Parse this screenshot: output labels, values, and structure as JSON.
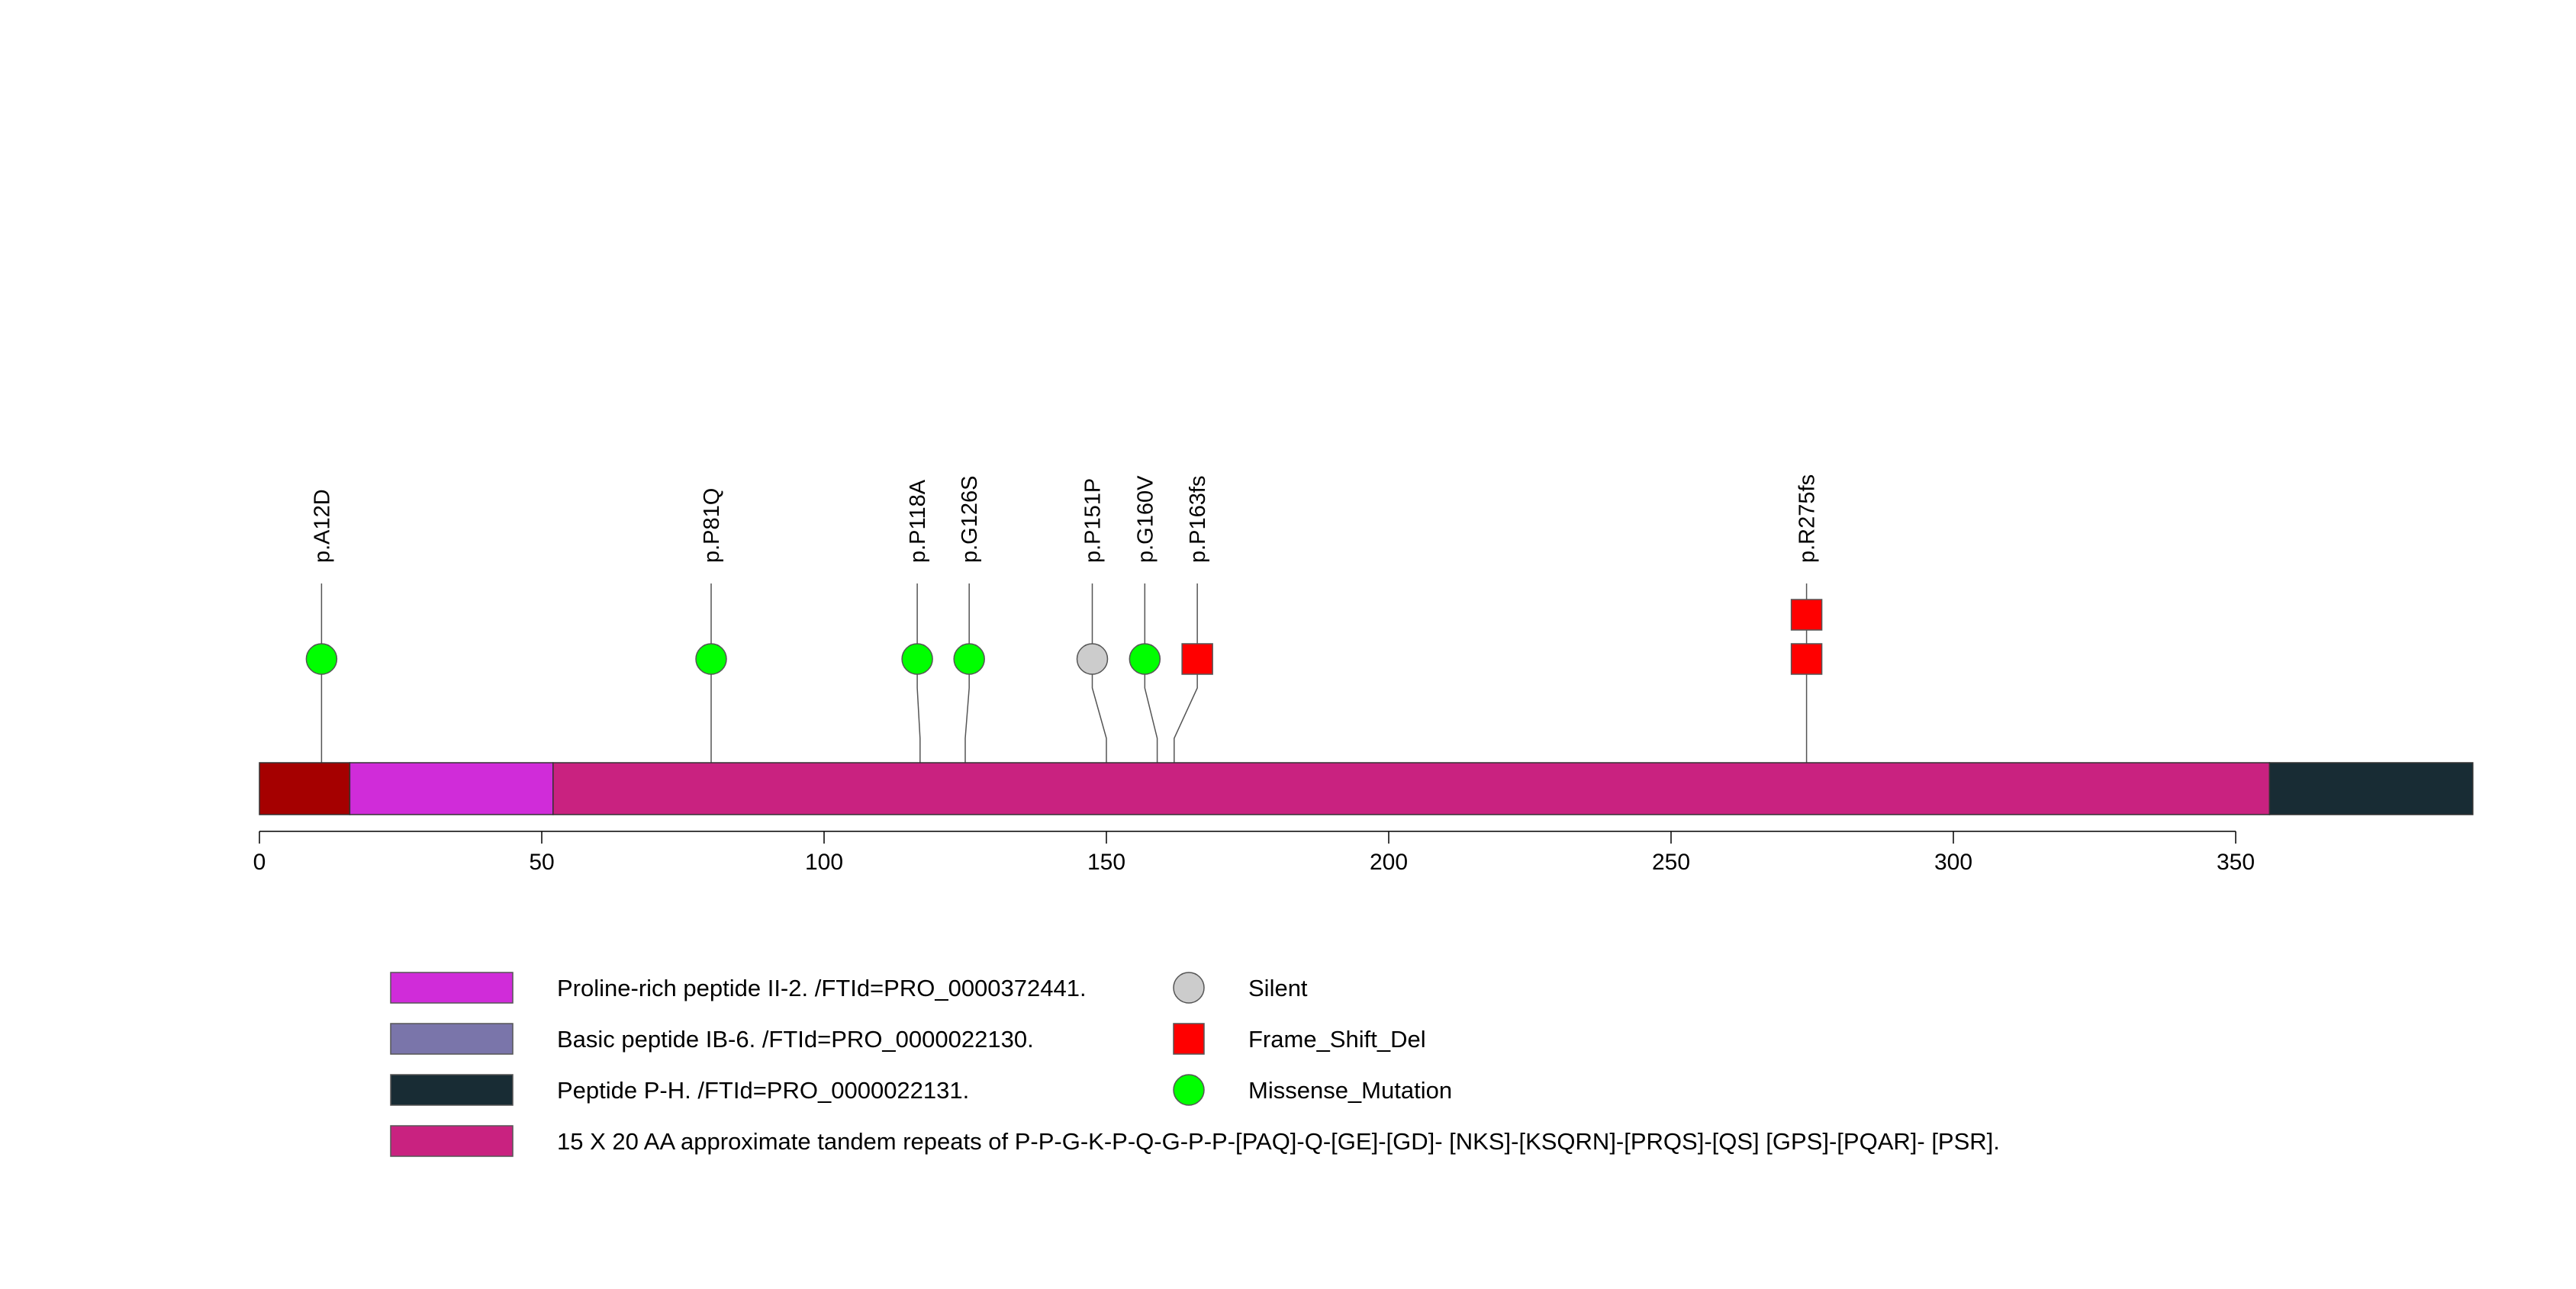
{
  "chart_data": {
    "type": "lollipop",
    "x_ticks": [
      0,
      50,
      100,
      150,
      200,
      250,
      300,
      350
    ],
    "protein_length": 392,
    "domains": [
      {
        "start": 0,
        "end": 16,
        "color": "#a50000"
      },
      {
        "start": 16,
        "end": 52,
        "color": "#d02cd9"
      },
      {
        "start": 52,
        "end": 356,
        "color": "#c92280"
      },
      {
        "start": 356,
        "end": 392,
        "color": "#182c34"
      }
    ],
    "mutations": [
      {
        "label": "p.A12D",
        "position": 11,
        "display_position": 11,
        "type": "Missense_Mutation",
        "count": 1
      },
      {
        "label": "p.P81Q",
        "position": 80,
        "display_position": 80,
        "type": "Missense_Mutation",
        "count": 1
      },
      {
        "label": "p.P118A",
        "position": 117,
        "display_position": 116.5,
        "type": "Missense_Mutation",
        "count": 1
      },
      {
        "label": "p.G126S",
        "position": 125,
        "display_position": 125.7,
        "type": "Missense_Mutation",
        "count": 1
      },
      {
        "label": "p.P151P",
        "position": 150,
        "display_position": 147.5,
        "type": "Silent",
        "count": 1
      },
      {
        "label": "p.G160V",
        "position": 159,
        "display_position": 156.8,
        "type": "Missense_Mutation",
        "count": 1
      },
      {
        "label": "p.P163fs",
        "position": 162,
        "display_position": 166.1,
        "type": "Frame_Shift_Del",
        "count": 1
      },
      {
        "label": "p.R275fs",
        "position": 274,
        "display_position": 274,
        "type": "Frame_Shift_Del",
        "count": 2
      }
    ],
    "mutation_styles": {
      "Silent": {
        "shape": "circle",
        "color": "#cccccc"
      },
      "Frame_Shift_Del": {
        "shape": "square",
        "color": "#ff0000"
      },
      "Missense_Mutation": {
        "shape": "circle",
        "color": "#00ff00"
      }
    },
    "domain_legend": [
      {
        "label": "Proline-rich peptide II-2. /FTId=PRO_0000372441.",
        "color": "#d02cd9"
      },
      {
        "label": "Basic peptide IB-6. /FTId=PRO_0000022130.",
        "color": "#7a75aa"
      },
      {
        "label": "Peptide P-H. /FTId=PRO_0000022131.",
        "color": "#182c34"
      },
      {
        "label": "15 X 20 AA approximate tandem repeats of P-P-G-K-P-Q-G-P-P-[PAQ]-Q-[GE]-[GD]- [NKS]-[KSQRN]-[PRQS]-[QS] [GPS]-[PQAR]- [PSR].",
        "color": "#c92280"
      }
    ],
    "mutation_legend": [
      {
        "label": "Silent",
        "type": "Silent"
      },
      {
        "label": "Frame_Shift_Del",
        "type": "Frame_Shift_Del"
      },
      {
        "label": "Missense_Mutation",
        "type": "Missense_Mutation"
      }
    ]
  }
}
